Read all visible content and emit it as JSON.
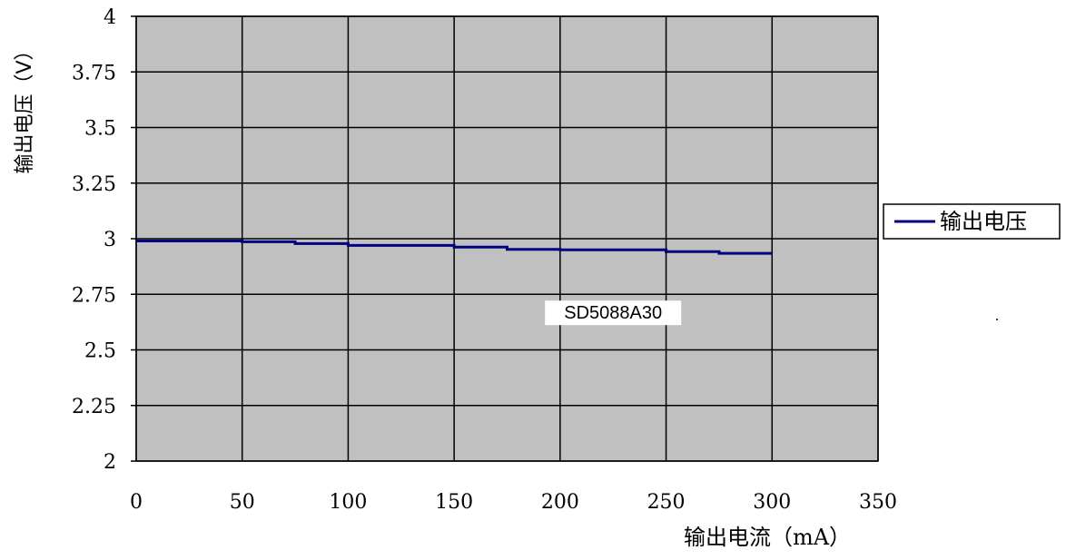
{
  "chart_data": {
    "type": "line",
    "title": "",
    "xlabel": "输出电流（mA）",
    "ylabel": "输出电压（V）",
    "xlim": [
      0,
      350
    ],
    "ylim": [
      2,
      4
    ],
    "x_ticks": [
      0,
      50,
      100,
      150,
      200,
      250,
      300,
      350
    ],
    "y_ticks": [
      2,
      2.25,
      2.5,
      2.75,
      3,
      3.25,
      3.5,
      3.75,
      4
    ],
    "x_tick_labels": [
      "0",
      "50",
      "100",
      "150",
      "200",
      "250",
      "300",
      "350"
    ],
    "y_tick_labels": [
      "2",
      "2.25",
      "2.5",
      "2.75",
      "3",
      "3.25",
      "3.5",
      "3.75",
      "4"
    ],
    "grid": true,
    "legend_position": "right",
    "series": [
      {
        "name": "输出电压",
        "color": "#000080",
        "x": [
          0,
          50,
          75,
          100,
          150,
          175,
          200,
          250,
          275,
          300
        ],
        "y": [
          2.99,
          2.986,
          2.978,
          2.97,
          2.962,
          2.952,
          2.95,
          2.942,
          2.934,
          2.934
        ],
        "step": true
      }
    ],
    "annotations": [
      {
        "text": "SD5088A30",
        "x": 225,
        "y": 2.64
      }
    ],
    "plot_background": "#c0c0c0",
    "grid_color": "#000000"
  }
}
